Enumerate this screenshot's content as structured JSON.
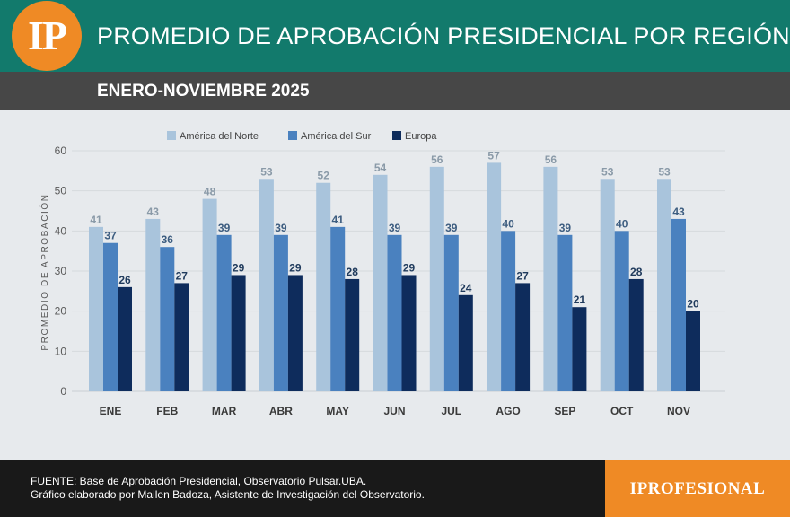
{
  "header": {
    "logo_text": "IP",
    "title": "PROMEDIO DE APROBACIÓN PRESIDENCIAL POR REGIÓN",
    "subtitle": "ENERO-NOVIEMBRE 2025",
    "colors": {
      "header_bg": "#127a6c",
      "subbar_bg": "#474747",
      "accent": "#ef8a25"
    }
  },
  "chart_data": {
    "type": "bar",
    "title": "PROMEDIO DE APROBACIÓN PRESIDENCIAL POR REGIÓN",
    "subtitle": "ENERO-NOVIEMBRE 2025",
    "xlabel": "",
    "ylabel": "PROMEDIO DE APROBACIÓN",
    "ylim": [
      0,
      60
    ],
    "yticks": [
      0,
      10,
      20,
      30,
      40,
      50,
      60
    ],
    "grid": true,
    "legend_position": "top-left",
    "categories": [
      "ENE",
      "FEB",
      "MAR",
      "ABR",
      "MAY",
      "JUN",
      "JUL",
      "AGO",
      "SEP",
      "OCT",
      "NOV"
    ],
    "series": [
      {
        "name": "América del Norte",
        "color": "#a9c4dc",
        "label_color": "#8a9aa8",
        "values": [
          41,
          43,
          48,
          53,
          52,
          54,
          56,
          57,
          56,
          53,
          53
        ]
      },
      {
        "name": "América del Sur",
        "color": "#4a81bf",
        "label_color": "#3d5d80",
        "values": [
          37,
          36,
          39,
          39,
          41,
          39,
          39,
          40,
          39,
          40,
          43
        ]
      },
      {
        "name": "Europa",
        "color": "#0e2c5c",
        "label_color": "#1f3a5c",
        "values": [
          26,
          27,
          29,
          29,
          28,
          29,
          24,
          27,
          21,
          28,
          20
        ]
      }
    ]
  },
  "footer": {
    "source_line1": "FUENTE: Base de Aprobación Presidencial, Observatorio Pulsar.UBA.",
    "source_line2": "Gráfico elaborado por Mailen Badoza, Asistente de Investigación del Observatorio.",
    "brand": "IPROFESIONAL"
  }
}
